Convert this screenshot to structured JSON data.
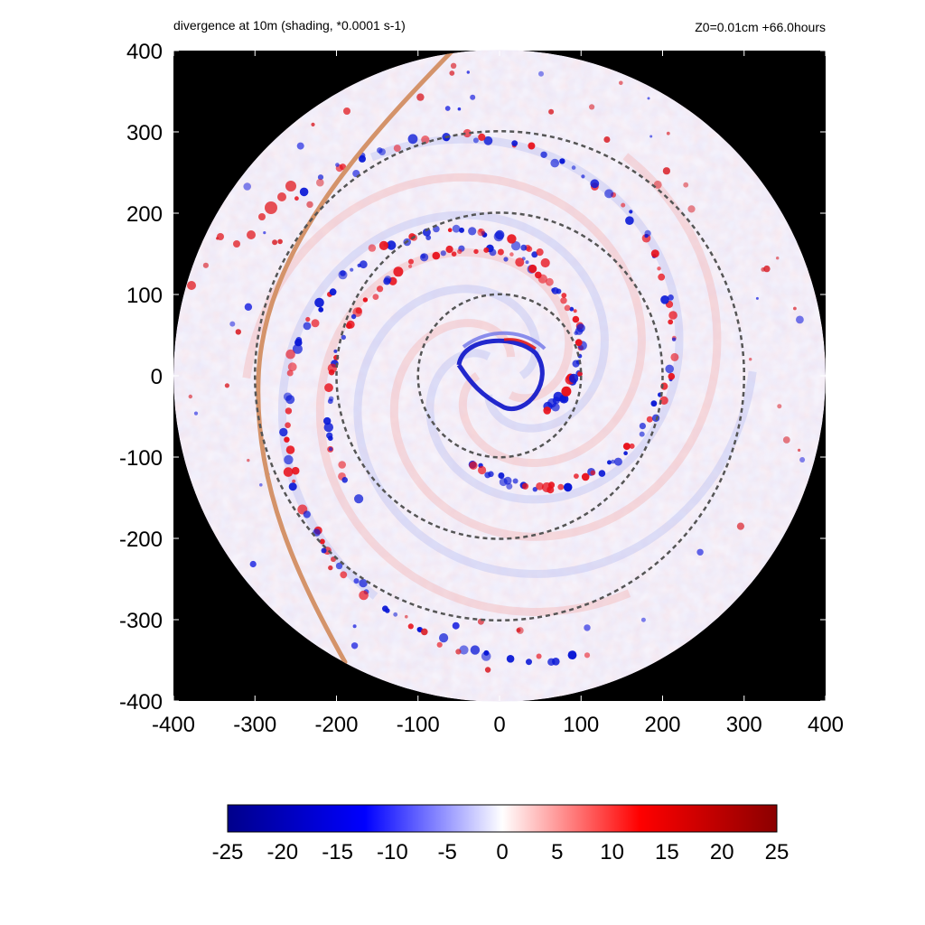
{
  "title": "divergence at 10m (shading, *0.0001 s-1)",
  "subtitle": "Z0=0.01cm  +66.0hours",
  "chart_data": {
    "type": "heatmap",
    "title": "divergence at 10m (shading, *0.0001 s-1)",
    "subtitle": "Z0=0.01cm  +66.0hours",
    "xlim": [
      -400,
      400
    ],
    "ylim": [
      -400,
      400
    ],
    "x_ticks": [
      "-400",
      "-300",
      "-200",
      "-100",
      "0",
      "100",
      "200",
      "300",
      "400"
    ],
    "y_ticks": [
      "400",
      "300",
      "200",
      "100",
      "0",
      "-100",
      "-200",
      "-300",
      "-400"
    ],
    "domain_radius": 400,
    "reference_circles": [
      100,
      200,
      300
    ],
    "colorbar": {
      "min": -25,
      "max": 25,
      "ticks": [
        "-25",
        "-20",
        "-15",
        "-10",
        "-5",
        "0",
        "5",
        "10",
        "15",
        "20",
        "25"
      ],
      "colors": [
        "#00008b",
        "#0000ff",
        "#ffffff",
        "#ff0000",
        "#8b0000"
      ]
    },
    "colors": {
      "background": "#000000",
      "dashed_circle": "#555555",
      "track_line": "#d4936a"
    }
  }
}
